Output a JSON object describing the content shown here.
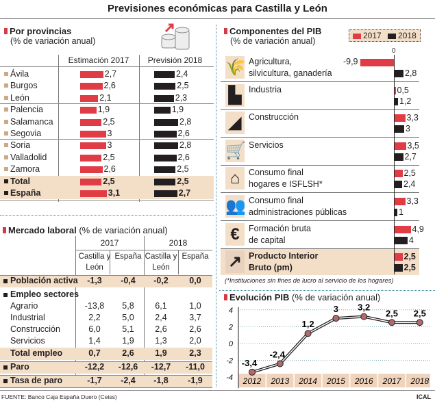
{
  "title": "Previsiones económicas para Castilla y León",
  "colors": {
    "y2017": "#e03c45",
    "y2018": "#231f20",
    "highlight": "#f3dec7",
    "bullet": "#c9a98a"
  },
  "provincias": {
    "title": "Por provincias",
    "subtitle": "(% de variación anual)",
    "col_2017": "Estimación 2017",
    "col_2018": "Previsión 2018",
    "rows": [
      {
        "name": "Ávila",
        "v2017": 2.7,
        "l2017": "2,7",
        "v2018": 2.4,
        "l2018": "2,4"
      },
      {
        "name": "Burgos",
        "v2017": 2.6,
        "l2017": "2,6",
        "v2018": 2.5,
        "l2018": "2,5"
      },
      {
        "name": "León",
        "v2017": 2.1,
        "l2017": "2,1",
        "v2018": 2.3,
        "l2018": "2,3"
      },
      {
        "name": "Palencia",
        "v2017": 1.9,
        "l2017": "1,9",
        "v2018": 1.9,
        "l2018": "1,9"
      },
      {
        "name": "Salamanca",
        "v2017": 2.5,
        "l2017": "2,5",
        "v2018": 2.8,
        "l2018": "2,8"
      },
      {
        "name": "Segovia",
        "v2017": 3,
        "l2017": "3",
        "v2018": 2.6,
        "l2018": "2,6"
      },
      {
        "name": "Soria",
        "v2017": 3,
        "l2017": "3",
        "v2018": 2.8,
        "l2018": "2,8"
      },
      {
        "name": "Valladolid",
        "v2017": 2.5,
        "l2017": "2,5",
        "v2018": 2.6,
        "l2018": "2,6"
      },
      {
        "name": "Zamora",
        "v2017": 2.6,
        "l2017": "2,6",
        "v2018": 2.5,
        "l2018": "2,5"
      },
      {
        "name": "Total",
        "v2017": 2.5,
        "l2017": "2,5",
        "v2018": 2.5,
        "l2018": "2,5",
        "bold": true
      },
      {
        "name": "España",
        "v2017": 3.1,
        "l2017": "3,1",
        "v2018": 2.7,
        "l2018": "2,7",
        "bold": true
      }
    ]
  },
  "mercado": {
    "title": "Mercado laboral",
    "subtitle": "(% de variación anual)",
    "years": [
      "2017",
      "2018"
    ],
    "cols": [
      "Castilla y León",
      "España",
      "Castilla y León",
      "España"
    ],
    "rows": [
      {
        "label": "Población activa",
        "values": [
          "-1,3",
          "-0,4",
          "-0,2",
          "0,0"
        ],
        "bold": true,
        "bullet": true,
        "hl": true
      },
      {
        "label": "Empleo sectores",
        "values": [],
        "bold": true,
        "bullet": true
      },
      {
        "label": "Agrario",
        "values": [
          "-13,8",
          "5,8",
          "6,1",
          "1,0"
        ]
      },
      {
        "label": "Industrial",
        "values": [
          "2,2",
          "5,0",
          "2,4",
          "3,7"
        ]
      },
      {
        "label": "Construcción",
        "values": [
          "6,0",
          "5,1",
          "2,6",
          "2,6"
        ]
      },
      {
        "label": "Servicios",
        "values": [
          "1,4",
          "1,9",
          "1,3",
          "2,0"
        ]
      },
      {
        "label": "Total empleo",
        "values": [
          "0,7",
          "2,6",
          "1,9",
          "2,3"
        ],
        "bold": true,
        "hl": true
      },
      {
        "label": "Paro",
        "values": [
          "-12,2",
          "-12,6",
          "-12,7",
          "-11,0"
        ],
        "bold": true,
        "bullet": true,
        "hl": true
      },
      {
        "label": "Tasa de paro",
        "values": [
          "-1,7",
          "-2,4",
          "-1,8",
          "-1,9"
        ],
        "bold": true,
        "bullet": true,
        "hl": true
      }
    ]
  },
  "componentes": {
    "title": "Componentes del PIB",
    "subtitle": "(% de variación anual)",
    "legend": [
      "2017",
      "2018"
    ],
    "zero_label": "0",
    "rows": [
      {
        "label": [
          "Agricultura,",
          "silvicultura, ganadería"
        ],
        "icon": "wheat-icon",
        "v2017": -9.9,
        "l2017": "-9,9",
        "v2018": 2.8,
        "l2018": "2,8"
      },
      {
        "label": [
          "Industria"
        ],
        "icon": "factory-icon",
        "v2017": 0.5,
        "l2017": "0,5",
        "v2018": 1.2,
        "l2018": "1,2"
      },
      {
        "label": [
          "Construcción"
        ],
        "icon": "trowel-icon",
        "v2017": 3.3,
        "l2017": "3,3",
        "v2018": 3,
        "l2018": "3"
      },
      {
        "label": [
          "Servicios"
        ],
        "icon": "shopping-cart-icon",
        "v2017": 3.5,
        "l2017": "3,5",
        "v2018": 2.7,
        "l2018": "2,7"
      },
      {
        "label": [
          "Consumo final",
          "hogares e ISFLSH*"
        ],
        "icon": "house-icon",
        "v2017": 2.5,
        "l2017": "2,5",
        "v2018": 2.4,
        "l2018": "2,4"
      },
      {
        "label": [
          "Consumo final",
          "administraciones públicas"
        ],
        "icon": "people-icon",
        "v2017": 3.3,
        "l2017": "3,3",
        "v2018": 1,
        "l2018": "1"
      },
      {
        "label": [
          "Formación bruta",
          "de capital"
        ],
        "icon": "euro-icon",
        "v2017": 4.9,
        "l2017": "4,9",
        "v2018": 4,
        "l2018": "4"
      },
      {
        "label": [
          "Producto Interior",
          "Bruto (pm)"
        ],
        "icon": "trend-up-icon",
        "v2017": 2.5,
        "l2017": "2,5",
        "v2018": 2.5,
        "l2018": "2,5",
        "bold": true
      }
    ],
    "footnote": "(*Instituciones sin fines de lucro al servicio de los hogares)"
  },
  "chart_data": {
    "type": "line",
    "title": "Evolución PIB",
    "subtitle": "(% de variación anual)",
    "categories": [
      "2012",
      "2013",
      "2014",
      "2015",
      "2016",
      "2017",
      "2018"
    ],
    "values": [
      -3.4,
      -2.4,
      1.2,
      3,
      3.2,
      2.5,
      2.5
    ],
    "labels": [
      "-3,4",
      "-2,4",
      "1,2",
      "3",
      "3,2",
      "2,5",
      "2,5"
    ],
    "ylim": [
      -4,
      4
    ],
    "yticks": [
      "4",
      "2",
      "0",
      "-2",
      "-4"
    ],
    "grid": true
  },
  "footer": {
    "source": "FUENTE: Banco Caja España Duero (Ceiss)",
    "credit": "ICAL"
  }
}
